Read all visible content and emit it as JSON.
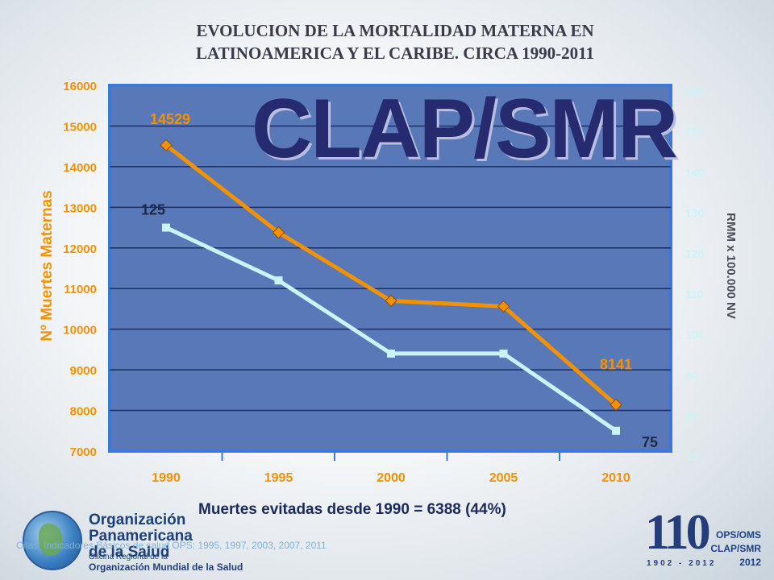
{
  "title": {
    "line1": "EVOLUCION DE LA MORTALIDAD MATERNA EN",
    "line2": "LATINOAMERICA Y EL CARIBE.    CIRCA 1990-2011"
  },
  "watermark": "CLAP/SMR",
  "footer_note": "Muertes evitadas desde 1990 = 6388 (44%)",
  "source": "Citas: Indicadores Básicos de salud OPS: 1995, 1997, 2003, 2007, 2011",
  "logo_left": {
    "name_line1": "Organización",
    "name_line2": "Panamericana",
    "name_line3": "de la Salud",
    "office_line1": "Oficina Regional de la",
    "office_line2": "Organización Mundial de la Salud"
  },
  "logo_right": {
    "anniversary": "110",
    "years": "1902 - 2012",
    "org_line1": "OPS/OMS",
    "org_line2": "CLAP/SMR",
    "org_line3": "2012"
  },
  "colors": {
    "deaths_line": "#f39200",
    "rmm_line": "#c8f4f8",
    "plot_bg": "#5878b8",
    "plot_border": "#3c78d8",
    "left_axis": "#f39200",
    "right_axis": "#ccf4f8",
    "label_dark": "#1e2a4a"
  },
  "chart_data": {
    "type": "line",
    "categories": [
      "1990",
      "1995",
      "2000",
      "2005",
      "2010"
    ],
    "series": [
      {
        "name": "",
        "axis": "left",
        "values": [
          14529,
          12380,
          10700,
          10560,
          8141
        ]
      },
      {
        "name": "",
        "axis": "right",
        "values": [
          125,
          112,
          94,
          94,
          75
        ]
      }
    ],
    "ylabel": "Nº Muertes Maternas",
    "y2label": "RMM x 100.000 NV",
    "ylim": [
      7000,
      16000
    ],
    "y2lim": [
      70,
      160
    ],
    "yticks": [
      "7000",
      "8000",
      "9000",
      "10000",
      "11000",
      "12000",
      "13000",
      "14000",
      "15000",
      "16000"
    ],
    "y2ticks": [
      "70",
      "80",
      "90",
      "100",
      "110",
      "120",
      "130",
      "140",
      "150",
      "160"
    ],
    "annotations": [
      {
        "series": 0,
        "index": 0,
        "text": "14529"
      },
      {
        "series": 0,
        "index": 4,
        "text": "8141"
      },
      {
        "series": 1,
        "index": 0,
        "text": "125"
      },
      {
        "series": 1,
        "index": 4,
        "text": "75"
      }
    ],
    "grid": true
  }
}
